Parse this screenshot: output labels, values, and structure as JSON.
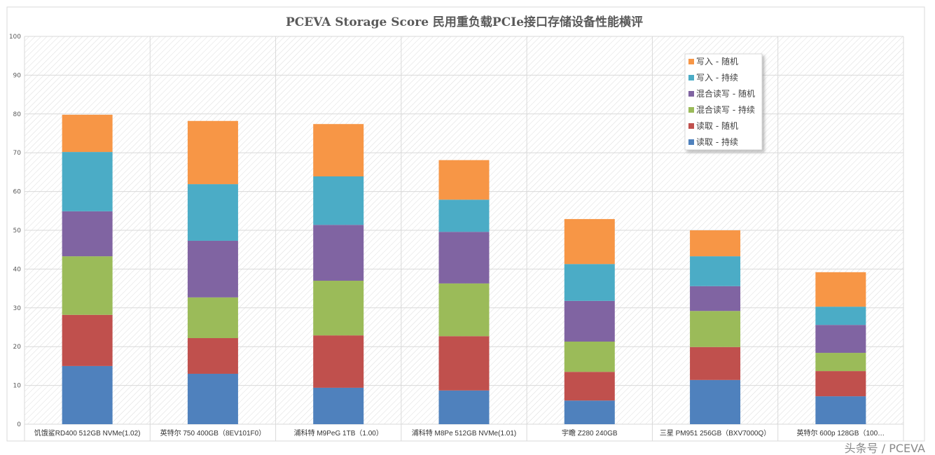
{
  "chart_data": {
    "type": "bar",
    "stacked": true,
    "title": "PCEVA Storage Score 民用重负载PCIe接口存储设备性能横评",
    "xlabel": "",
    "ylabel": "",
    "ylim": [
      0,
      100
    ],
    "yticks": [
      0,
      10,
      20,
      30,
      40,
      50,
      60,
      70,
      80,
      90,
      100
    ],
    "grid": true,
    "legend_position": "top-right",
    "categories": [
      "饥饿鲨RD400 512GB NVMe(1.02)",
      "英特尔 750 400GB（8EV101F0）",
      "浦科特 M9PeG 1TB（1.00）",
      "浦科特 M8Pe 512GB NVMe(1.01)",
      "宇瞻 Z280 240GB",
      "三星 PM951 256GB（BXV7000Q）",
      "英特尔 600p 128GB（100…"
    ],
    "series": [
      {
        "name": "读取 - 持续",
        "color": "#4f81bd",
        "values": [
          15.0,
          13.0,
          9.4,
          8.7,
          6.1,
          11.4,
          7.2
        ]
      },
      {
        "name": "读取 - 随机",
        "color": "#c0504d",
        "values": [
          13.2,
          9.2,
          13.5,
          14.0,
          7.4,
          8.5,
          6.5
        ]
      },
      {
        "name": "混合读写 - 持续",
        "color": "#9bbb59",
        "values": [
          15.1,
          10.5,
          14.1,
          13.6,
          7.8,
          9.3,
          4.7
        ]
      },
      {
        "name": "混合读写 - 随机",
        "color": "#8064a2",
        "values": [
          11.6,
          14.6,
          14.4,
          13.3,
          10.5,
          6.4,
          7.2
        ]
      },
      {
        "name": "写入 - 持续",
        "color": "#4bacc6",
        "values": [
          15.3,
          14.6,
          12.5,
          8.3,
          9.5,
          7.7,
          4.7
        ]
      },
      {
        "name": "写入 - 随机",
        "color": "#f79646",
        "values": [
          9.6,
          16.3,
          13.5,
          10.2,
          11.6,
          6.7,
          8.9
        ]
      }
    ]
  },
  "watermark": "头条号 / PCEVA"
}
